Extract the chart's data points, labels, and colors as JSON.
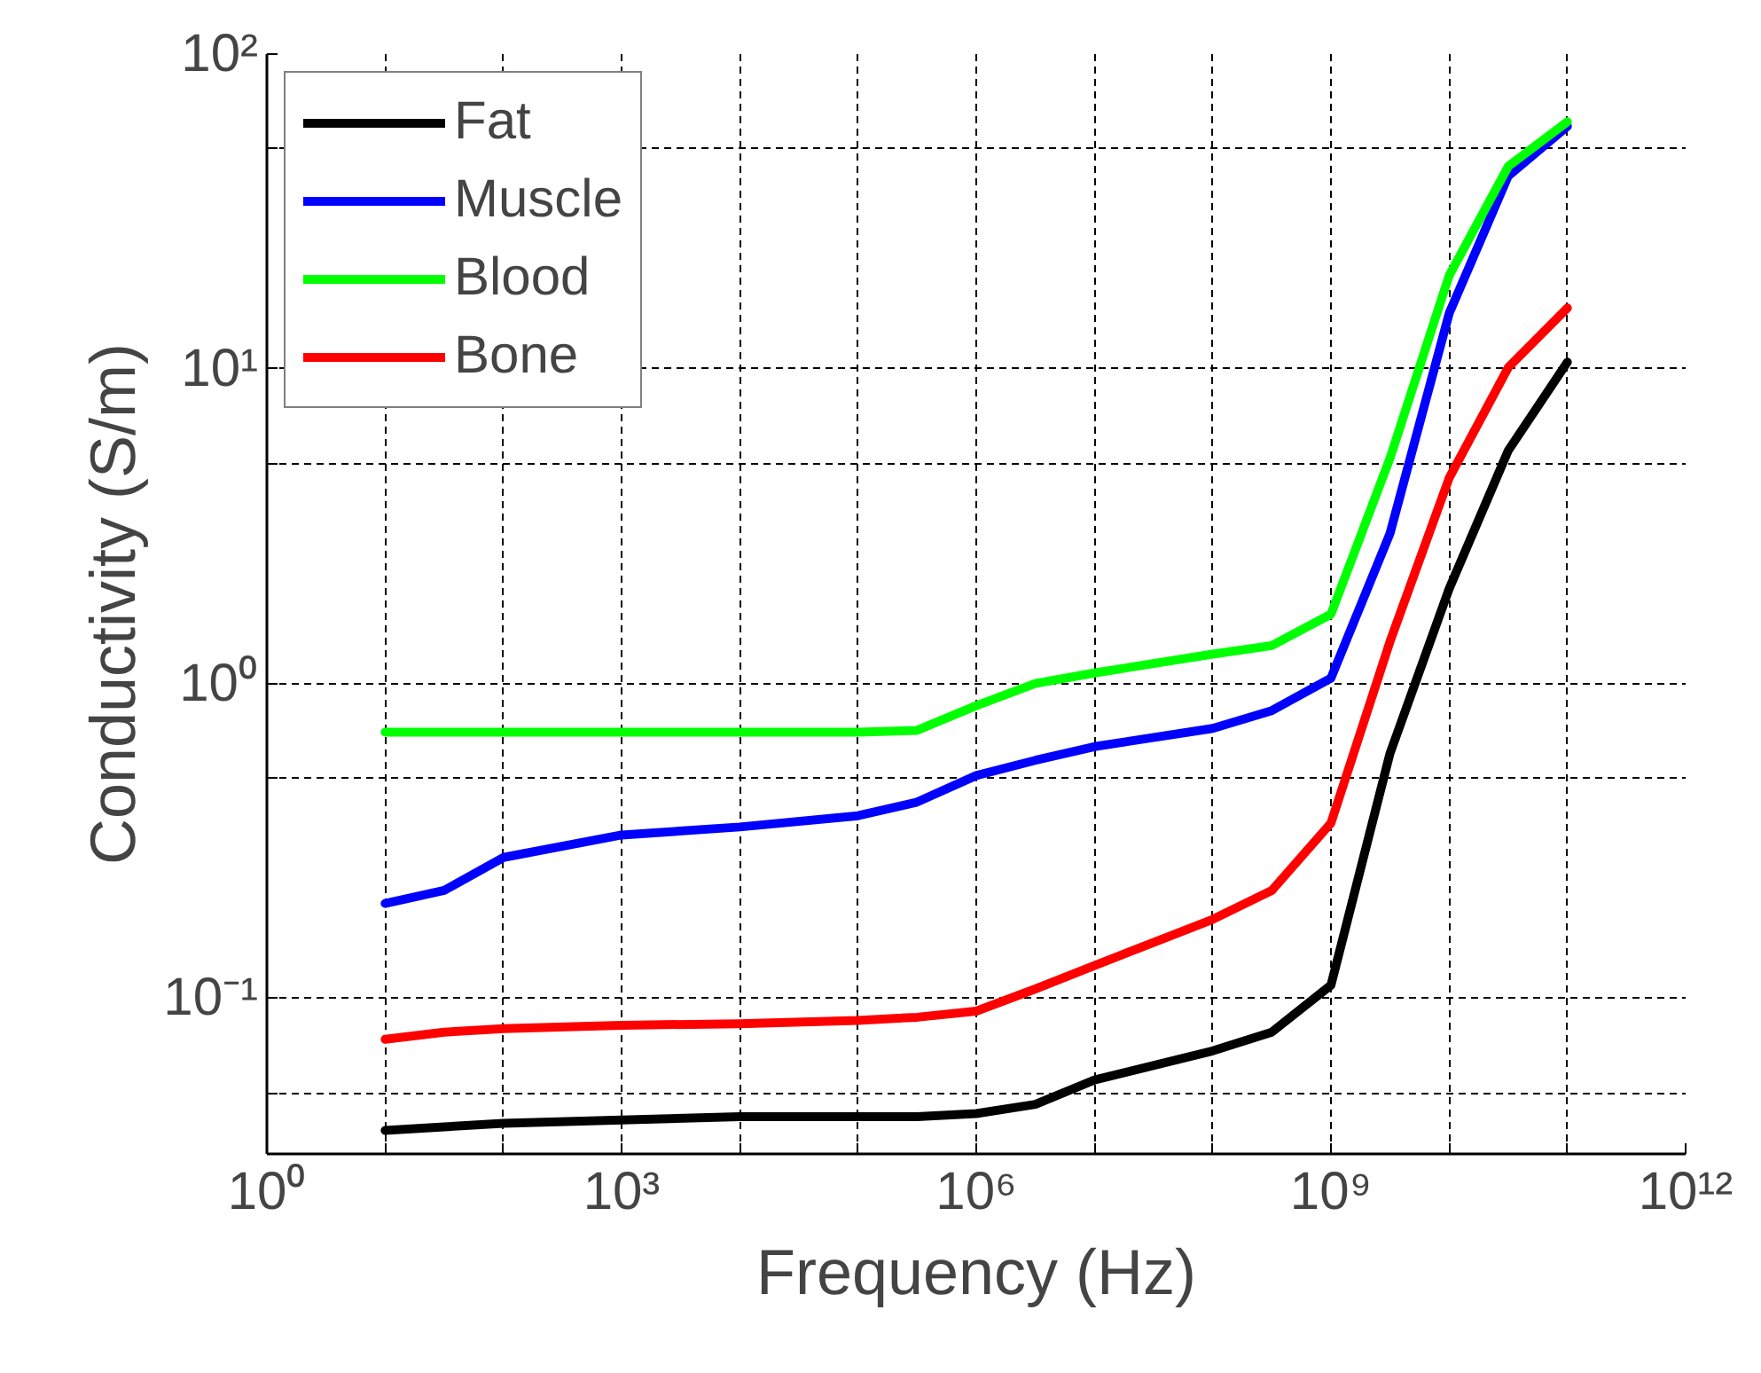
{
  "chart_data": {
    "type": "line",
    "xlabel": "Frequency (Hz)",
    "ylabel": "Conductivity (S/m)",
    "log": "xy",
    "grid": true,
    "legend": "top left",
    "line_style": "solid",
    "marker": "none",
    "xlim": [
      1,
      1000000000000.0
    ],
    "ylim": [
      0.032,
      100
    ],
    "xticks": [
      {
        "value": 1,
        "label": "10⁰"
      },
      {
        "value": 10,
        "label": null
      },
      {
        "value": 100,
        "label": null
      },
      {
        "value": 1000,
        "label": "10³"
      },
      {
        "value": 10000.0,
        "label": null
      },
      {
        "value": 100000.0,
        "label": null
      },
      {
        "value": 1000000.0,
        "label": "10⁶"
      },
      {
        "value": 10000000.0,
        "label": null
      },
      {
        "value": 100000000.0,
        "label": null
      },
      {
        "value": 1000000000.0,
        "label": "10⁹"
      },
      {
        "value": 10000000000.0,
        "label": null
      },
      {
        "value": 100000000000.0,
        "label": null
      },
      {
        "value": 1000000000000.0,
        "label": "10¹²"
      }
    ],
    "yticks": [
      {
        "value": 0.05,
        "label": null
      },
      {
        "value": 0.1,
        "label": "10⁻¹"
      },
      {
        "value": 0.5,
        "label": null
      },
      {
        "value": 1,
        "label": "10⁰"
      },
      {
        "value": 5,
        "label": null
      },
      {
        "value": 10,
        "label": "10¹"
      },
      {
        "value": 50,
        "label": null
      },
      {
        "value": 100,
        "label": "10²"
      }
    ],
    "x": [
      10,
      31.6,
      100,
      1000,
      10000.0,
      100000.0,
      316000.0,
      1000000.0,
      3160000.0,
      10000000.0,
      100000000.0,
      316000000.0,
      1000000000.0,
      3160000000.0,
      10000000000.0,
      31600000000.0,
      100000000000.0
    ],
    "series": [
      {
        "name": "Fat",
        "color": "#000000",
        "values": [
          0.038,
          0.039,
          0.04,
          0.041,
          0.042,
          0.042,
          0.042,
          0.043,
          0.046,
          0.055,
          0.068,
          0.078,
          0.11,
          0.6,
          2.0,
          5.5,
          10.5
        ]
      },
      {
        "name": "Muscle",
        "color": "#0000ff",
        "values": [
          0.2,
          0.22,
          0.28,
          0.33,
          0.35,
          0.38,
          0.42,
          0.51,
          0.57,
          0.63,
          0.72,
          0.82,
          1.04,
          3.0,
          15,
          41,
          59
        ]
      },
      {
        "name": "Blood",
        "color": "#00ff00",
        "values": [
          0.7,
          0.7,
          0.7,
          0.7,
          0.7,
          0.7,
          0.71,
          0.85,
          1.0,
          1.08,
          1.24,
          1.32,
          1.66,
          5.2,
          19.8,
          44,
          61
        ]
      },
      {
        "name": "Bone",
        "color": "#ff0000",
        "values": [
          0.074,
          0.078,
          0.08,
          0.082,
          0.083,
          0.085,
          0.087,
          0.091,
          0.107,
          0.127,
          0.178,
          0.22,
          0.36,
          1.36,
          4.5,
          10.1,
          15.6
        ]
      }
    ]
  }
}
